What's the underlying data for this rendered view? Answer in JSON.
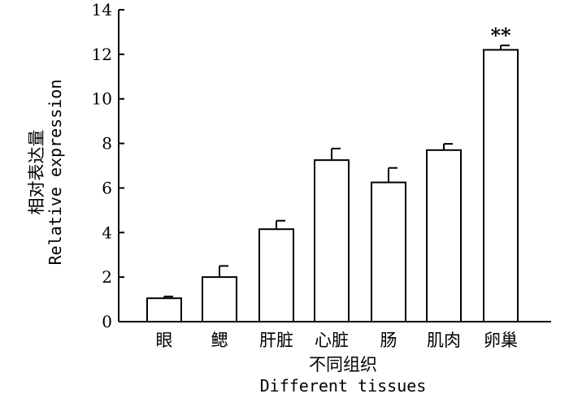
{
  "chart_data": {
    "type": "bar",
    "categories": [
      "眼",
      "鳃",
      "肝脏",
      "心脏",
      "肠",
      "肌肉",
      "卵巢"
    ],
    "values": [
      1.05,
      2.0,
      4.15,
      7.25,
      6.25,
      7.7,
      12.2
    ],
    "errors": [
      0.08,
      0.5,
      0.38,
      0.52,
      0.65,
      0.28,
      0.2
    ],
    "annotations": [
      "",
      "",
      "",
      "",
      "",
      "",
      "**"
    ],
    "ylim": [
      0,
      14
    ],
    "yticks": [
      "0",
      "2",
      "4",
      "6",
      "8",
      "10",
      "12",
      "14"
    ],
    "xlabel": "不同组织",
    "xlabel_en": "Different tissues",
    "ylabel": "相对表达量",
    "ylabel_en": "Relative expression",
    "grid": false,
    "bar_color": "#ffffff",
    "edge_color": "#000000"
  }
}
